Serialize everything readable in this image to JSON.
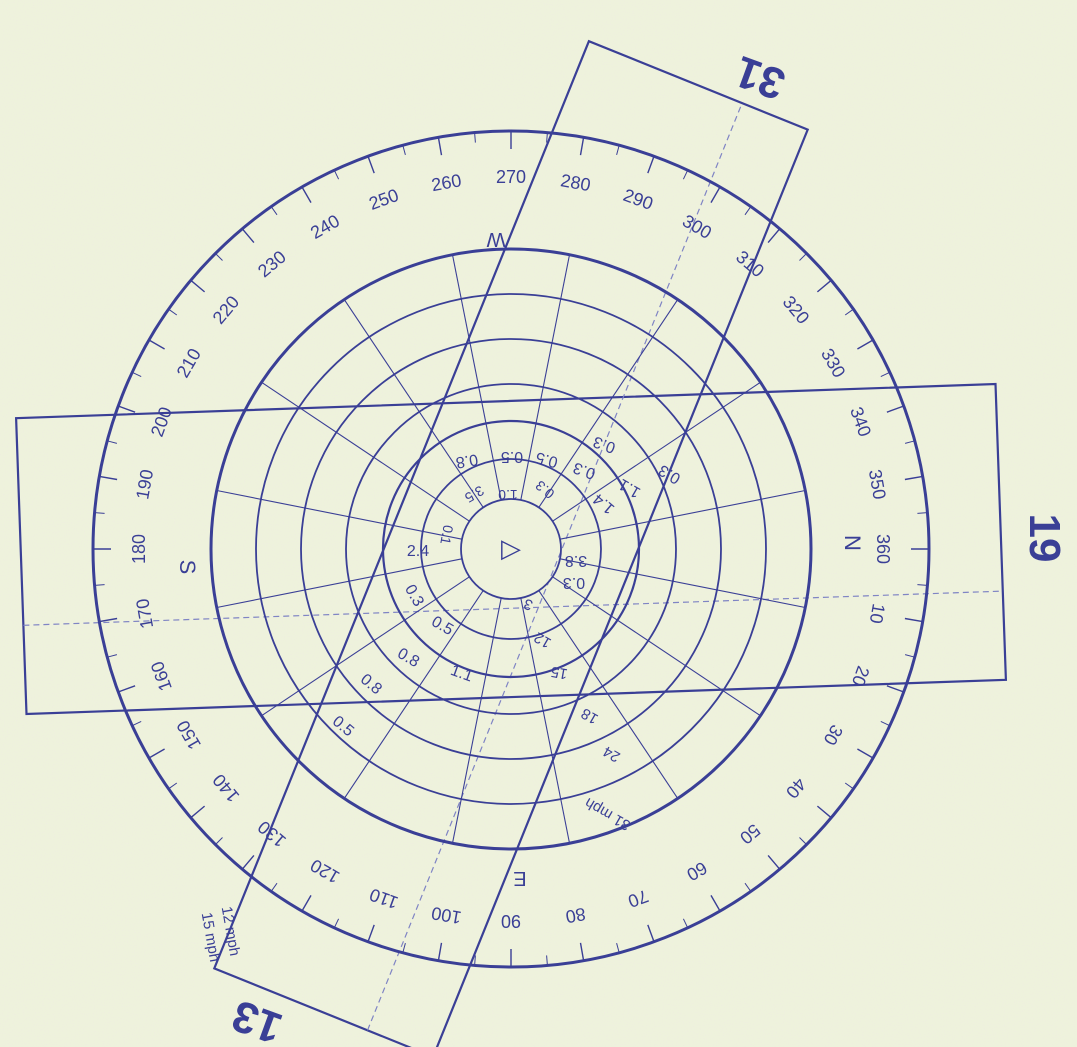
{
  "colors": {
    "paper": "#eef2dc",
    "ink": "#3a3f96",
    "ink_light": "#7f84c4",
    "speckle_pink": "#e7c3dc",
    "speckle_blue": "#c9cbe8"
  },
  "compass": {
    "cardinals": {
      "N": "N",
      "S": "S",
      "E": "E",
      "W": "W"
    },
    "bearings": [
      "10",
      "20",
      "30",
      "40",
      "50",
      "60",
      "70",
      "80",
      "90",
      "100",
      "110",
      "120",
      "130",
      "140",
      "150",
      "160",
      "170",
      "180",
      "190",
      "200",
      "210",
      "220",
      "230",
      "240",
      "250",
      "260",
      "270",
      "280",
      "290",
      "300",
      "310",
      "320",
      "330",
      "340",
      "350",
      "360"
    ],
    "center_symbol": "▷"
  },
  "runways": [
    {
      "label": "19",
      "heading_deg": 190
    },
    {
      "label": "31",
      "heading_deg": 310
    },
    {
      "label": "13",
      "heading_deg": 130
    }
  ],
  "speed_labels": {
    "ring_12": "12 mph",
    "ring_15": "15 mph",
    "ring_31": "31 mph",
    "ring_24": "24",
    "ring_18": "18",
    "ring_15_inner": "15",
    "ring_12_inner": "12",
    "ring_3": "3"
  },
  "frequency_values": [
    "0.3",
    "0.3",
    "1.1",
    "0.3",
    "1.4",
    "3.8",
    "0.3",
    "0.5",
    "0.5",
    "0.8",
    "0.8",
    "0.5",
    "1.1",
    "0.8",
    "0.5",
    "0.3",
    "2.4",
    "0.1",
    "3.5",
    "0.3",
    "1.0"
  ]
}
